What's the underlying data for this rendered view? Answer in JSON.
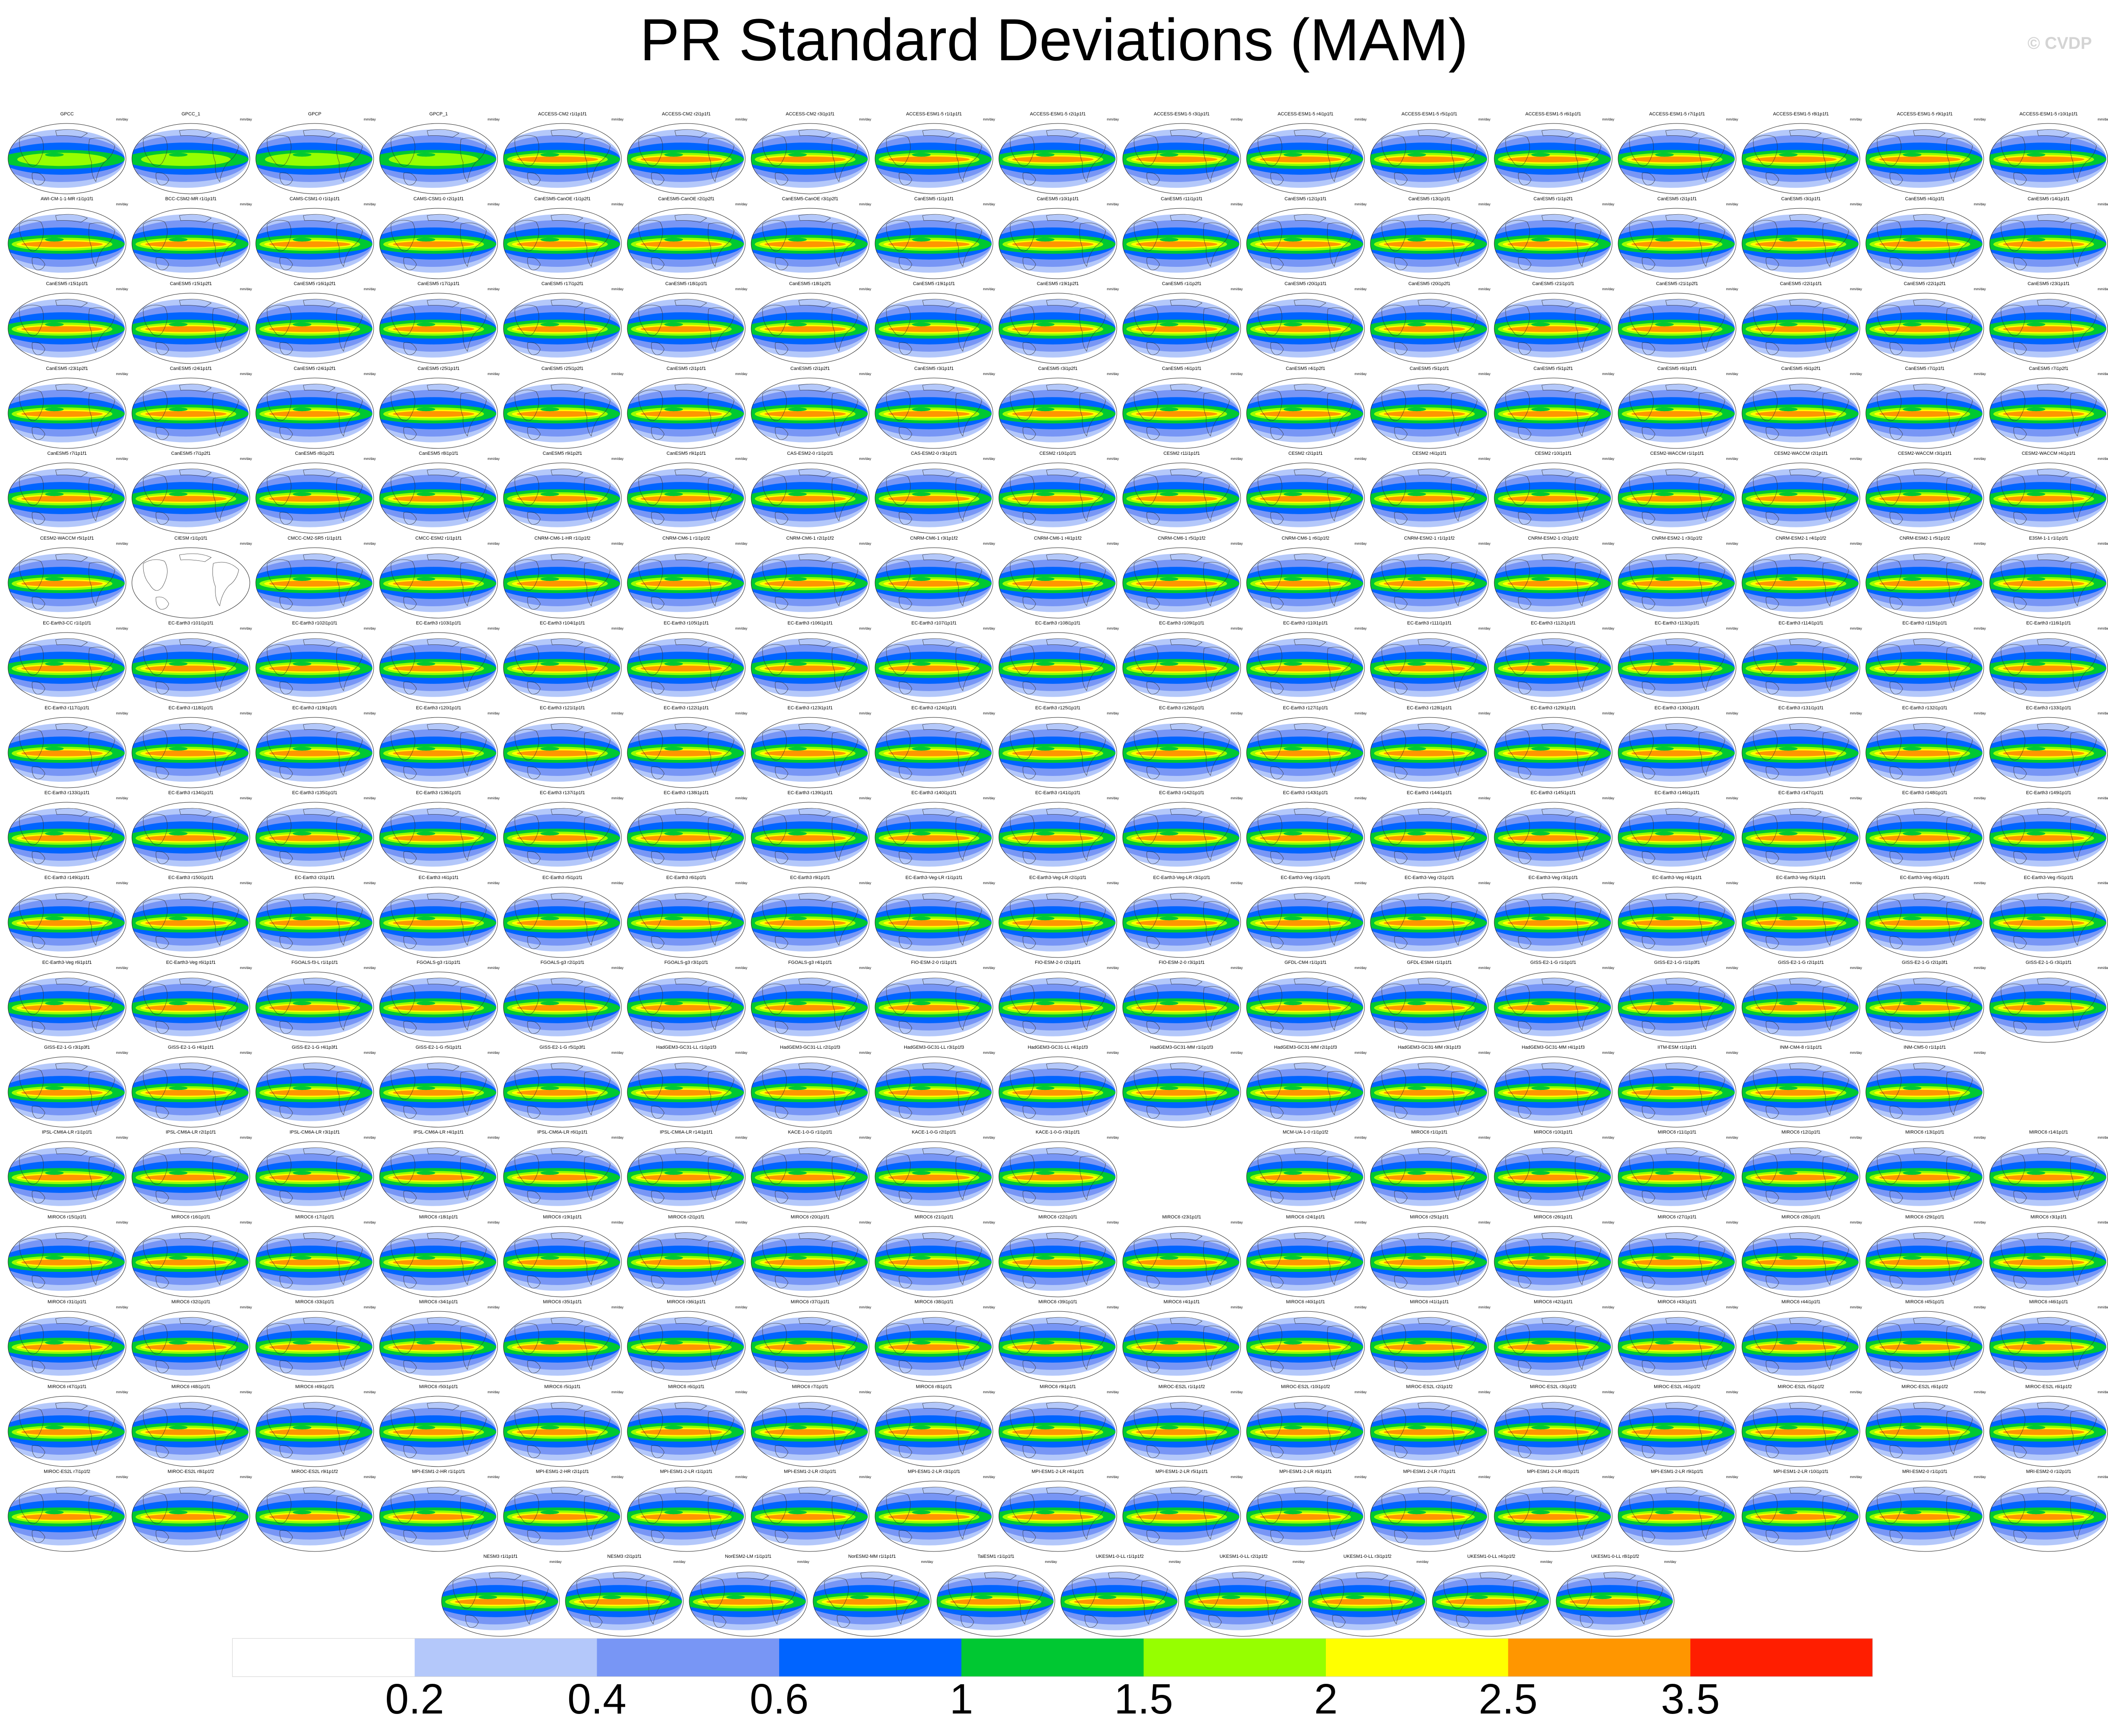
{
  "header": {
    "title": "PR Standard Deviations (MAM)",
    "copyright": "© CVDP"
  },
  "panel_units": "mm/day",
  "rows": [
    [
      "GPCC",
      "GPCC_1",
      "GPCP",
      "GPCP_1",
      "ACCESS-CM2 r1i1p1f1",
      "ACCESS-CM2 r2i1p1f1",
      "ACCESS-CM2 r3i1p1f1",
      "ACCESS-ESM1-5 r1i1p1f1",
      "ACCESS-ESM1-5 r2i1p1f1",
      "ACCESS-ESM1-5 r3i1p1f1",
      "ACCESS-ESM1-5 r4i1p1f1",
      "ACCESS-ESM1-5 r5i1p1f1",
      "ACCESS-ESM1-5 r6i1p1f1",
      "ACCESS-ESM1-5 r7i1p1f1",
      "ACCESS-ESM1-5 r8i1p1f1",
      "ACCESS-ESM1-5 r9i1p1f1",
      "ACCESS-ESM1-5 r10i1p1f1"
    ],
    [
      "AWI-CM-1-1-MR r1i1p1f1",
      "BCC-CSM2-MR r1i1p1f1",
      "CAMS-CSM1-0 r1i1p1f1",
      "CAMS-CSM1-0 r2i1p1f1",
      "CanESM5-CanOE r1i1p2f1",
      "CanESM5-CanOE r2i1p2f1",
      "CanESM5-CanOE r3i1p2f1",
      "CanESM5 r1i1p1f1",
      "CanESM5 r10i1p1f1",
      "CanESM5 r11i1p1f1",
      "CanESM5 r12i1p1f1",
      "CanESM5 r13i1p1f1",
      "CanESM5 r1i1p2f1",
      "CanESM5 r2i1p1f1",
      "CanESM5 r3i1p1f1",
      "CanESM5 r4i1p1f1",
      "CanESM5 r14i1p1f1"
    ],
    [
      "CanESM5 r15i1p1f1",
      "CanESM5 r15i1p2f1",
      "CanESM5 r16i1p2f1",
      "CanESM5 r17i1p1f1",
      "CanESM5 r17i1p2f1",
      "CanESM5 r18i1p1f1",
      "CanESM5 r18i1p2f1",
      "CanESM5 r19i1p1f1",
      "CanESM5 r19i1p2f1",
      "CanESM5 r1i1p2f1",
      "CanESM5 r20i1p1f1",
      "CanESM5 r20i1p2f1",
      "CanESM5 r21i1p1f1",
      "CanESM5 r21i1p2f1",
      "CanESM5 r22i1p1f1",
      "CanESM5 r22i1p2f1",
      "CanESM5 r23i1p1f1"
    ],
    [
      "CanESM5 r23i1p2f1",
      "CanESM5 r24i1p1f1",
      "CanESM5 r24i1p2f1",
      "CanESM5 r25i1p1f1",
      "CanESM5 r25i1p2f1",
      "CanESM5 r2i1p1f1",
      "CanESM5 r2i1p2f1",
      "CanESM5 r3i1p1f1",
      "CanESM5 r3i1p2f1",
      "CanESM5 r4i1p1f1",
      "CanESM5 r4i1p2f1",
      "CanESM5 r5i1p1f1",
      "CanESM5 r5i1p2f1",
      "CanESM5 r6i1p1f1",
      "CanESM5 r6i1p2f1",
      "CanESM5 r7i1p1f1",
      "CanESM5 r7i1p2f1"
    ],
    [
      "CanESM5 r7i1p1f1",
      "CanESM5 r7i1p2f1",
      "CanESM5 r8i1p2f1",
      "CanESM5 r8i1p1f1",
      "CanESM5 r9i1p2f1",
      "CanESM5 r9i1p1f1",
      "CAS-ESM2-0 r1i1p1f1",
      "CAS-ESM2-0 r3i1p1f1",
      "CESM2 r10i1p1f1",
      "CESM2 r11i1p1f1",
      "CESM2 r2i1p1f1",
      "CESM2 r4i1p1f1",
      "CESM2 r10i1p1f1",
      "CESM2-WACCM r1i1p1f1",
      "CESM2-WACCM r2i1p1f1",
      "CESM2-WACCM r3i1p1f1",
      "CESM2-WACCM r4i1p1f1"
    ],
    [
      "CESM2-WACCM r5i1p1f1",
      "CIESM r1i1p1f1",
      "CMCC-CM2-SR5 r1i1p1f1",
      "CMCC-ESM2 r1i1p1f1",
      "CNRM-CM6-1-HR r1i1p1f2",
      "CNRM-CM6-1 r1i1p1f2",
      "CNRM-CM6-1 r2i1p1f2",
      "CNRM-CM6-1 r3i1p1f2",
      "CNRM-CM6-1 r4i1p1f2",
      "CNRM-CM6-1 r5i1p1f2",
      "CNRM-CM6-1 r6i1p1f2",
      "CNRM-ESM2-1 r1i1p1f2",
      "CNRM-ESM2-1 r2i1p1f2",
      "CNRM-ESM2-1 r3i1p1f2",
      "CNRM-ESM2-1 r4i1p1f2",
      "CNRM-ESM2-1 r5i1p1f2",
      "E3SM-1-1 r1i1p1f1"
    ],
    [
      "EC-Earth3-CC r1i1p1f1",
      "EC-Earth3 r101i1p1f1",
      "EC-Earth3 r102i1p1f1",
      "EC-Earth3 r103i1p1f1",
      "EC-Earth3 r104i1p1f1",
      "EC-Earth3 r105i1p1f1",
      "EC-Earth3 r106i1p1f1",
      "EC-Earth3 r107i1p1f1",
      "EC-Earth3 r108i1p1f1",
      "EC-Earth3 r109i1p1f1",
      "EC-Earth3 r110i1p1f1",
      "EC-Earth3 r111i1p1f1",
      "EC-Earth3 r112i1p1f1",
      "EC-Earth3 r113i1p1f1",
      "EC-Earth3 r114i1p1f1",
      "EC-Earth3 r115i1p1f1",
      "EC-Earth3 r116i1p1f1"
    ],
    [
      "EC-Earth3 r117i1p1f1",
      "EC-Earth3 r118i1p1f1",
      "EC-Earth3 r119i1p1f1",
      "EC-Earth3 r120i1p1f1",
      "EC-Earth3 r121i1p1f1",
      "EC-Earth3 r122i1p1f1",
      "EC-Earth3 r123i1p1f1",
      "EC-Earth3 r124i1p1f1",
      "EC-Earth3 r125i1p1f1",
      "EC-Earth3 r126i1p1f1",
      "EC-Earth3 r127i1p1f1",
      "EC-Earth3 r128i1p1f1",
      "EC-Earth3 r129i1p1f1",
      "EC-Earth3 r130i1p1f1",
      "EC-Earth3 r131i1p1f1",
      "EC-Earth3 r132i1p1f1",
      "EC-Earth3 r133i1p1f1"
    ],
    [
      "EC-Earth3 r133i1p1f1",
      "EC-Earth3 r134i1p1f1",
      "EC-Earth3 r135i1p1f1",
      "EC-Earth3 r136i1p1f1",
      "EC-Earth3 r137i1p1f1",
      "EC-Earth3 r138i1p1f1",
      "EC-Earth3 r139i1p1f1",
      "EC-Earth3 r140i1p1f1",
      "EC-Earth3 r141i1p1f1",
      "EC-Earth3 r142i1p1f1",
      "EC-Earth3 r143i1p1f1",
      "EC-Earth3 r144i1p1f1",
      "EC-Earth3 r145i1p1f1",
      "EC-Earth3 r146i1p1f1",
      "EC-Earth3 r147i1p1f1",
      "EC-Earth3 r148i1p1f1",
      "EC-Earth3 r149i1p1f1"
    ],
    [
      "EC-Earth3 r149i1p1f1",
      "EC-Earth3 r150i1p1f1",
      "EC-Earth3 r2i1p1f1",
      "EC-Earth3 r4i1p1f1",
      "EC-Earth3 r5i1p1f1",
      "EC-Earth3 r6i1p1f1",
      "EC-Earth3 r9i1p1f1",
      "EC-Earth3-Veg-LR r1i1p1f1",
      "EC-Earth3-Veg-LR r2i1p1f1",
      "EC-Earth3-Veg-LR r3i1p1f1",
      "EC-Earth3-Veg r1i1p1f1",
      "EC-Earth3-Veg r2i1p1f1",
      "EC-Earth3-Veg r3i1p1f1",
      "EC-Earth3-Veg r4i1p1f1",
      "EC-Earth3-Veg r5i1p1f1",
      "EC-Earth3-Veg r6i1p1f1",
      "EC-Earth3-Veg r5i1p1f1"
    ],
    [
      "EC-Earth3-Veg r6i1p1f1",
      "EC-Earth3-Veg r6i1p1f1",
      "FGOALS-f3-L r1i1p1f1",
      "FGOALS-g3 r1i1p1f1",
      "FGOALS-g3 r2i1p1f1",
      "FGOALS-g3 r3i1p1f1",
      "FGOALS-g3 r4i1p1f1",
      "FIO-ESM-2-0 r1i1p1f1",
      "FIO-ESM-2-0 r2i1p1f1",
      "FIO-ESM-2-0 r3i1p1f1",
      "GFDL-CM4 r1i1p1f1",
      "GFDL-ESM4 r1i1p1f1",
      "GISS-E2-1-G r1i1p1f1",
      "GISS-E2-1-G r1i1p3f1",
      "GISS-E2-1-G r2i1p1f1",
      "GISS-E2-1-G r2i1p3f1",
      "GISS-E2-1-G r3i1p1f1"
    ],
    [
      "GISS-E2-1-G r3i1p3f1",
      "GISS-E2-1-G r4i1p1f1",
      "GISS-E2-1-G r4i1p3f1",
      "GISS-E2-1-G r5i1p1f1",
      "GISS-E2-1-G r5i1p3f1",
      "HadGEM3-GC31-LL r1i1p1f3",
      "HadGEM3-GC31-LL r2i1p1f3",
      "HadGEM3-GC31-LL r3i1p1f3",
      "HadGEM3-GC31-LL r4i1p1f3",
      "HadGEM3-GC31-MM r1i1p1f3",
      "HadGEM3-GC31-MM r2i1p1f3",
      "HadGEM3-GC31-MM r3i1p1f3",
      "HadGEM3-GC31-MM r4i1p1f3",
      "IITM-ESM r1i1p1f1",
      "INM-CM4-8 r1i1p1f1",
      "INM-CM5-0 r1i1p1f1"
    ],
    [
      "IPSL-CM6A-LR r1i1p1f1",
      "IPSL-CM6A-LR r2i1p1f1",
      "IPSL-CM6A-LR r3i1p1f1",
      "IPSL-CM6A-LR r4i1p1f1",
      "IPSL-CM6A-LR r6i1p1f1",
      "IPSL-CM6A-LR r14i1p1f1",
      "KACE-1-0-G r1i1p1f1",
      "KACE-1-0-G r2i1p1f1",
      "KACE-1-0-G r3i1p1f1",
      "",
      "MCM-UA-1-0 r1i1p1f2",
      "MIROC6 r1i1p1f1",
      "MIROC6 r10i1p1f1",
      "MIROC6 r11i1p1f1",
      "MIROC6 r12i1p1f1",
      "MIROC6 r13i1p1f1",
      "MIROC6 r14i1p1f1"
    ],
    [
      "MIROC6 r15i1p1f1",
      "MIROC6 r16i1p1f1",
      "MIROC6 r17i1p1f1",
      "MIROC6 r18i1p1f1",
      "MIROC6 r19i1p1f1",
      "MIROC6 r2i1p1f1",
      "MIROC6 r20i1p1f1",
      "MIROC6 r21i1p1f1",
      "MIROC6 r22i1p1f1",
      "MIROC6 r23i1p1f1",
      "MIROC6 r24i1p1f1",
      "MIROC6 r25i1p1f1",
      "MIROC6 r26i1p1f1",
      "MIROC6 r27i1p1f1",
      "MIROC6 r28i1p1f1",
      "MIROC6 r29i1p1f1",
      "MIROC6 r3i1p1f1"
    ],
    [
      "MIROC6 r31i1p1f1",
      "MIROC6 r32i1p1f1",
      "MIROC6 r33i1p1f1",
      "MIROC6 r34i1p1f1",
      "MIROC6 r35i1p1f1",
      "MIROC6 r36i1p1f1",
      "MIROC6 r37i1p1f1",
      "MIROC6 r38i1p1f1",
      "MIROC6 r39i1p1f1",
      "MIROC6 r4i1p1f1",
      "MIROC6 r40i1p1f1",
      "MIROC6 r41i1p1f1",
      "MIROC6 r42i1p1f1",
      "MIROC6 r43i1p1f1",
      "MIROC6 r44i1p1f1",
      "MIROC6 r45i1p1f1",
      "MIROC6 r46i1p1f1"
    ],
    [
      "MIROC6 r47i1p1f1",
      "MIROC6 r48i1p1f1",
      "MIROC6 r49i1p1f1",
      "MIROC6 r50i1p1f1",
      "MIROC6 r5i1p1f1",
      "MIROC6 r6i1p1f1",
      "MIROC6 r7i1p1f1",
      "MIROC6 r8i1p1f1",
      "MIROC6 r9i1p1f1",
      "MIROC-ES2L r1i1p1f2",
      "MIROC-ES2L r10i1p1f2",
      "MIROC-ES2L r2i1p1f2",
      "MIROC-ES2L r3i1p1f2",
      "MIROC-ES2L r4i1p1f2",
      "MIROC-ES2L r5i1p1f2",
      "MIROC-ES2L r6i1p1f2",
      "MIROC-ES2L r6i1p1f2"
    ],
    [
      "MIROC-ES2L r7i1p1f2",
      "MIROC-ES2L r8i1p1f2",
      "MIROC-ES2L r9i1p1f2",
      "MPI-ESM1-2-HR r1i1p1f1",
      "MPI-ESM1-2-HR r2i1p1f1",
      "MPI-ESM1-2-LR r1i1p1f1",
      "MPI-ESM1-2-LR r2i1p1f1",
      "MPI-ESM1-2-LR r3i1p1f1",
      "MPI-ESM1-2-LR r4i1p1f1",
      "MPI-ESM1-2-LR r5i1p1f1",
      "MPI-ESM1-2-LR r6i1p1f1",
      "MPI-ESM1-2-LR r7i1p1f1",
      "MPI-ESM1-2-LR r8i1p1f1",
      "MPI-ESM1-2-LR r9i1p1f1",
      "MPI-ESM1-2-LR r10i1p1f1",
      "MRI-ESM2-0 r1i1p1f1",
      "MRI-ESM2-0 r1i2p1f1"
    ],
    [
      "NESM3 r1i1p1f1",
      "NESM3 r2i1p1f1",
      "NorESM2-LM r1i1p1f1",
      "NorESM2-MM r1i1p1f1",
      "TaiESM1 r1i1p1f1",
      "UKESM1-0-LL r1i1p1f2",
      "UKESM1-0-LL r2i1p1f2",
      "UKESM1-0-LL r3i1p1f2",
      "UKESM1-0-LL r4i1p1f2",
      "UKESM1-0-LL r8i1p1f2"
    ]
  ],
  "chart_data": {
    "type": "heatmap",
    "title": "PR Standard Deviations (MAM)",
    "units": "mm/day",
    "projection": "Robinson, Pacific-centered global maps, one per dataset",
    "colorbar": {
      "orientation": "horizontal",
      "placement": "bottom",
      "levels": [
        0.2,
        0.4,
        0.6,
        1,
        1.5,
        2,
        2.5,
        3.5
      ],
      "tick_labels": [
        "0.2",
        "0.4",
        "0.6",
        "1",
        "1.5",
        "2",
        "2.5",
        "3.5"
      ],
      "colors": [
        "#ffffff",
        "#b4c8fa",
        "#7896f5",
        "#0064ff",
        "#00c832",
        "#96ff00",
        "#ffff00",
        "#ff9600",
        "#ff1e00"
      ]
    },
    "empty_panels": [
      "CIESM r1i1p1f1"
    ],
    "observation_panels": [
      "GPCC",
      "GPCC_1",
      "GPCP",
      "GPCP_1"
    ]
  }
}
